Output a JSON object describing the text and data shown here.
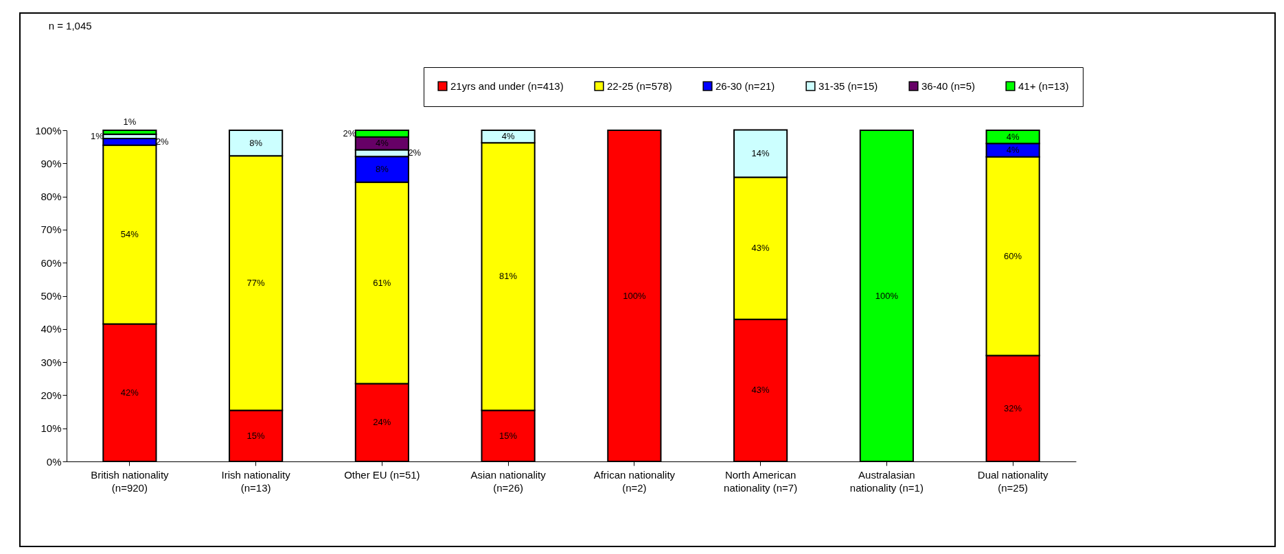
{
  "chart_data": {
    "type": "bar",
    "stacked": true,
    "categories": [
      "British nationality (n=920)",
      "Irish nationality (n=13)",
      "Other EU (n=51)",
      "Asian nationality (n=26)",
      "African nationality (n=2)",
      "North American nationality (n=7)",
      "Australasian nationality (n=1)",
      "Dual nationality (n=25)"
    ],
    "series": [
      {
        "name": "21yrs and under (n=413)",
        "color": "#ff0000",
        "values": [
          41.5,
          15.4,
          23.5,
          15.4,
          100,
          42.9,
          null,
          32
        ],
        "value_labels": [
          "42%",
          "15%",
          "24%",
          "15%",
          "100%",
          "43%",
          null,
          "32%"
        ]
      },
      {
        "name": "22-25 (n=578)",
        "color": "#ffff00",
        "values": [
          54,
          76.9,
          60.8,
          80.8,
          null,
          42.9,
          null,
          60
        ],
        "value_labels": [
          "54%",
          "77%",
          "61%",
          "81%",
          null,
          "43%",
          null,
          "60%"
        ]
      },
      {
        "name": "26-30 (n=21)",
        "color": "#0000ff",
        "values": [
          2,
          null,
          7.8,
          null,
          null,
          null,
          null,
          4
        ],
        "value_labels": [
          "2%",
          null,
          "8%",
          null,
          null,
          null,
          null,
          "4%"
        ]
      },
      {
        "name": "31-35 (n=15)",
        "color": "#ccffff",
        "values": [
          1.3,
          7.7,
          2,
          3.8,
          null,
          14.3,
          null,
          null
        ],
        "value_labels": [
          "1%",
          "8%",
          "2%",
          "4%",
          null,
          "14%",
          null,
          null
        ]
      },
      {
        "name": "36-40 (n=5)",
        "color": "#660066",
        "values": [
          null,
          null,
          3.9,
          null,
          null,
          null,
          null,
          null
        ],
        "value_labels": [
          null,
          null,
          "4%",
          null,
          null,
          null,
          null,
          null
        ]
      },
      {
        "name": "41+ (n=13)",
        "color": "#00ff00",
        "values": [
          1.2,
          null,
          2,
          null,
          null,
          null,
          100,
          4
        ],
        "value_labels": [
          "1%",
          null,
          "2%",
          null,
          null,
          null,
          "100%",
          "4%"
        ]
      }
    ],
    "ylim": [
      0,
      100
    ],
    "yticks": [
      {
        "value": 0,
        "label": "0%"
      },
      {
        "value": 10,
        "label": "10%"
      },
      {
        "value": 20,
        "label": "20%"
      },
      {
        "value": 30,
        "label": "30%"
      },
      {
        "value": 40,
        "label": "40%"
      },
      {
        "value": 50,
        "label": "50%"
      },
      {
        "value": 60,
        "label": "60%"
      },
      {
        "value": 70,
        "label": "70%"
      },
      {
        "value": 80,
        "label": "80%"
      },
      {
        "value": 90,
        "label": "90%"
      },
      {
        "value": 100,
        "label": "100%"
      }
    ],
    "annotations": [
      "n = 1,045"
    ],
    "legend": "top right"
  }
}
